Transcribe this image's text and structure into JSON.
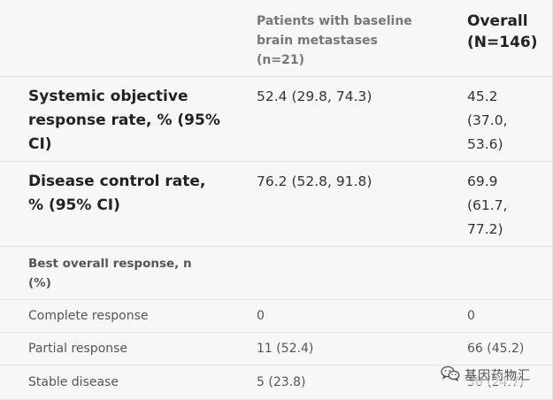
{
  "header": {
    "col2": "Patients with baseline brain metastases (n=21)",
    "col2_lines": [
      "Patients with baseline",
      "brain metastases",
      "(n=21)"
    ],
    "col3_lines": [
      "Overall",
      "(N=146)"
    ]
  },
  "rows": [
    {
      "label_lines": [
        "Systemic objective",
        "response rate, % (95%",
        "CI)"
      ],
      "brain": "52.4 (29.8, 74.3)",
      "overall_lines": [
        "45.2",
        "(37.0,",
        "53.6)"
      ]
    },
    {
      "label_lines": [
        "Disease control rate,",
        "% (95% CI)"
      ],
      "brain": "76.2 (52.8, 91.8)",
      "overall_lines": [
        "69.9",
        "(61.7,",
        "77.2)"
      ]
    }
  ],
  "section": {
    "label_lines": [
      "Best overall response, n",
      "(%)"
    ]
  },
  "response_rows": [
    {
      "label": "Complete response",
      "brain": "0",
      "overall": "0"
    },
    {
      "label": "Partial response",
      "brain": "11 (52.4)",
      "overall": "66 (45.2)"
    },
    {
      "label": "Stable disease",
      "brain": "5 (23.8)",
      "overall": "36 (24.7)"
    }
  ],
  "watermark": {
    "text": "基因药物汇",
    "icon": "wechat-icon"
  },
  "colors": {
    "background": "#f7f7f7",
    "divider": "#e3e3e3",
    "header_sub": "#777777",
    "text_dark": "#222222",
    "text_muted": "#555555"
  }
}
